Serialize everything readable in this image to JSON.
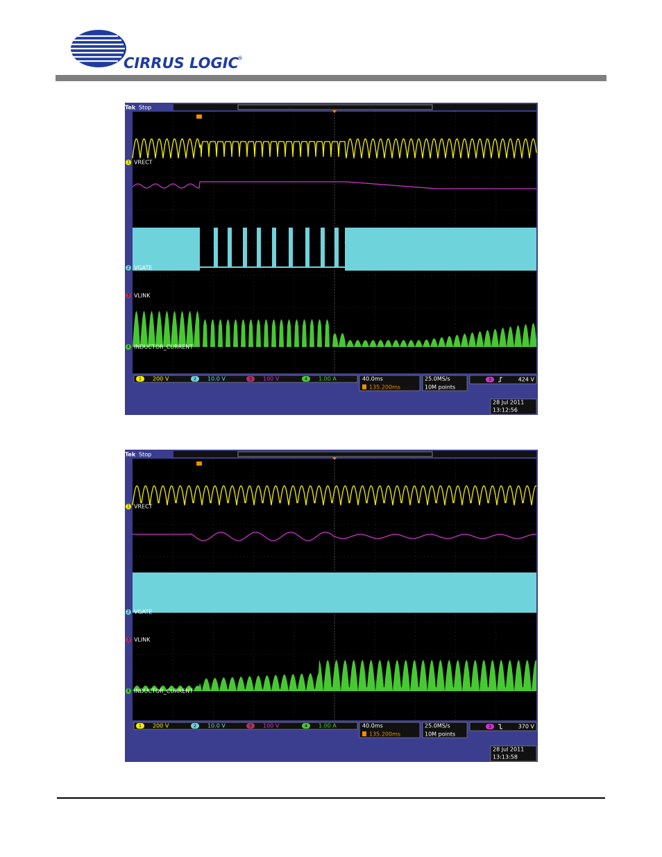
{
  "header": {
    "logo_text": "CIRRUS LOGIC",
    "logo_mark": "®"
  },
  "scopes": [
    {
      "brand": "Tek",
      "state": "Stop",
      "channels": [
        {
          "number": "1",
          "label": "VRECT",
          "scale": "200 V"
        },
        {
          "number": "2",
          "label": "VGATE",
          "scale": "10.0 V"
        },
        {
          "number": "3",
          "label": "VLINK",
          "scale": "100 V"
        },
        {
          "number": "4",
          "label": "INDUCTOR_CURRENT",
          "scale": "1.00 A"
        }
      ],
      "timebase": "40.0ms",
      "trigger_position": "135.200ms",
      "sample_rate": "25.0MS/s",
      "record_length": "10M points",
      "trigger_channel": "3",
      "trigger_level": "424 V",
      "date": "28 Jul  2011",
      "time": "13:12:56"
    },
    {
      "brand": "Tek",
      "state": "Stop",
      "channels": [
        {
          "number": "1",
          "label": "VRECT",
          "scale": "200 V"
        },
        {
          "number": "2",
          "label": "VGATE",
          "scale": "10.0 V"
        },
        {
          "number": "3",
          "label": "VLINK",
          "scale": "100 V"
        },
        {
          "number": "4",
          "label": "INDUCTOR_CURRENT",
          "scale": "1.00 A"
        }
      ],
      "timebase": "40.0ms",
      "trigger_position": "135.200ms",
      "sample_rate": "25.0MS/s",
      "record_length": "10M points",
      "trigger_channel": "3",
      "trigger_level": "370 V",
      "date": "28 Jul  2011",
      "time": "13:13:58"
    }
  ]
}
